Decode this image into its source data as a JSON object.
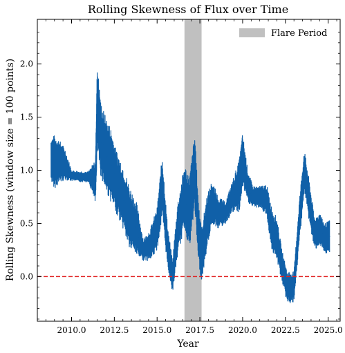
{
  "chart_data": {
    "type": "line",
    "title": "Rolling Skewness of Flux over Time",
    "xlabel": "Year",
    "ylabel": "Rolling Skewness (window size = 100 points)",
    "xlim": [
      2008.0,
      2025.7
    ],
    "ylim": [
      -0.42,
      2.42
    ],
    "xticks": [
      2010.0,
      2012.5,
      2015.0,
      2017.5,
      2020.0,
      2022.5,
      2025.0
    ],
    "xtick_labels": [
      "2010.0",
      "2012.5",
      "2015.0",
      "2017.5",
      "2020.0",
      "2022.5",
      "2025.0"
    ],
    "yticks": [
      0.0,
      0.5,
      1.0,
      1.5,
      2.0
    ],
    "ytick_labels": [
      "0.0",
      "0.5",
      "1.0",
      "1.5",
      "2.0"
    ],
    "grid": false,
    "legend_position": "top-right",
    "series": [
      {
        "color": "#1060a8",
        "x": [
          2008.8,
          2009.0,
          2009.3,
          2009.6,
          2010.0,
          2010.5,
          2011.0,
          2011.4,
          2011.5,
          2011.7,
          2012.0,
          2012.3,
          2012.6,
          2013.0,
          2013.4,
          2013.8,
          2014.2,
          2014.6,
          2015.0,
          2015.3,
          2015.6,
          2015.9,
          2016.2,
          2016.6,
          2016.9,
          2017.2,
          2017.4,
          2017.6,
          2017.9,
          2018.2,
          2018.6,
          2019.0,
          2019.4,
          2019.8,
          2020.0,
          2020.3,
          2020.6,
          2021.0,
          2021.4,
          2021.7,
          2022.0,
          2022.3,
          2022.6,
          2023.0,
          2023.3,
          2023.6,
          2023.9,
          2024.2,
          2024.5,
          2024.8,
          2025.1
        ],
        "y": [
          1.1,
          1.08,
          1.08,
          1.06,
          0.95,
          0.94,
          0.94,
          0.9,
          1.6,
          1.3,
          1.15,
          1.05,
          0.9,
          0.75,
          0.55,
          0.45,
          0.25,
          0.3,
          0.45,
          0.85,
          0.3,
          0.0,
          0.45,
          0.75,
          0.6,
          1.0,
          0.45,
          0.2,
          0.5,
          0.7,
          0.6,
          0.6,
          0.75,
          0.85,
          1.1,
          0.85,
          0.75,
          0.75,
          0.72,
          0.45,
          0.35,
          0.1,
          -0.1,
          -0.1,
          0.5,
          1.0,
          0.7,
          0.4,
          0.45,
          0.35,
          0.38
        ],
        "band": [
          0.2,
          0.25,
          0.2,
          0.15,
          0.05,
          0.05,
          0.05,
          0.2,
          0.4,
          0.35,
          0.35,
          0.35,
          0.3,
          0.3,
          0.3,
          0.25,
          0.1,
          0.15,
          0.2,
          0.3,
          0.2,
          0.15,
          0.25,
          0.3,
          0.35,
          0.35,
          0.3,
          0.25,
          0.25,
          0.2,
          0.15,
          0.1,
          0.15,
          0.25,
          0.25,
          0.15,
          0.1,
          0.1,
          0.15,
          0.2,
          0.2,
          0.15,
          0.15,
          0.15,
          0.2,
          0.2,
          0.2,
          0.15,
          0.15,
          0.15,
          0.15
        ]
      }
    ],
    "shaded_region": {
      "x": [
        2016.6,
        2017.6
      ],
      "color": "#c0c0c0",
      "label": "Flare Period"
    },
    "reference_line": {
      "y": 0.0,
      "color": "#e02020",
      "style": "dashed"
    }
  }
}
